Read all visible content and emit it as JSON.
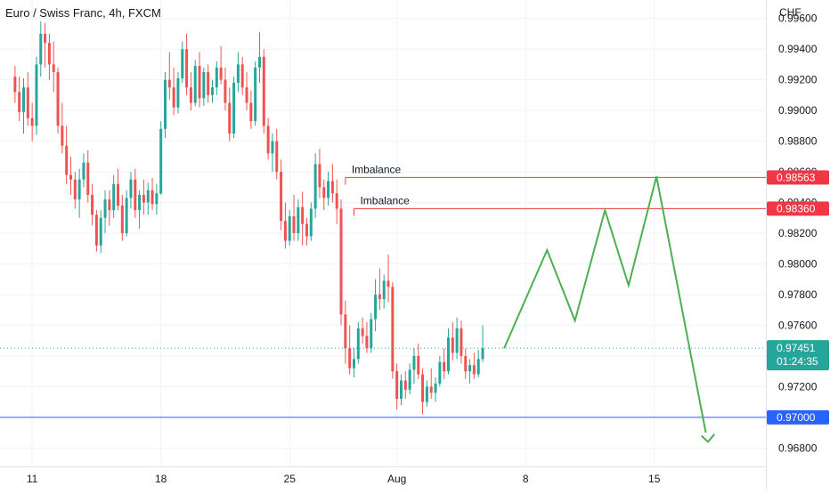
{
  "header": {
    "title": "Euro / Swiss Franc, 4h, FXCM",
    "currency": "CHF"
  },
  "colors": {
    "up": "#26a69a",
    "down": "#ef5350",
    "drawing": "#f23645",
    "support": "#2962ff",
    "projection": "#4caf50",
    "grid": "#f0f3fa",
    "text": "#131722"
  },
  "chart_data": {
    "type": "candlestick",
    "symbol": "EURCHF",
    "interval": "4h",
    "y_axis": {
      "ticks": [
        "0.99600",
        "0.99400",
        "0.99200",
        "0.99000",
        "0.98800",
        "0.98600",
        "0.98400",
        "0.98200",
        "0.98000",
        "0.97800",
        "0.97600",
        "0.97400",
        "0.97200",
        "0.97000",
        "0.96800"
      ],
      "ylim": [
        0.9668,
        0.9972
      ]
    },
    "x_axis": {
      "ticks": [
        {
          "label": "11",
          "bar": 4
        },
        {
          "label": "18",
          "bar": 34
        },
        {
          "label": "25",
          "bar": 64
        },
        {
          "label": "Aug",
          "bar": 89
        },
        {
          "label": "8",
          "bar": 119
        },
        {
          "label": "15",
          "bar": 149
        }
      ],
      "bar_range": [
        -3.5,
        175
      ]
    },
    "candles": [
      [
        0.9922,
        0.9929,
        0.9905,
        0.9912
      ],
      [
        0.9912,
        0.9922,
        0.9893,
        0.9899
      ],
      [
        0.9899,
        0.9921,
        0.9885,
        0.9915
      ],
      [
        0.9915,
        0.9925,
        0.989,
        0.9895
      ],
      [
        0.9895,
        0.9905,
        0.988,
        0.989
      ],
      [
        0.989,
        0.9935,
        0.9884,
        0.993
      ],
      [
        0.993,
        0.9958,
        0.9922,
        0.995
      ],
      [
        0.995,
        0.9957,
        0.9928,
        0.9944
      ],
      [
        0.9944,
        0.995,
        0.992,
        0.993
      ],
      [
        0.993,
        0.9945,
        0.9912,
        0.9925
      ],
      [
        0.9925,
        0.9928,
        0.9885,
        0.989
      ],
      [
        0.989,
        0.9905,
        0.9872,
        0.9877
      ],
      [
        0.9877,
        0.989,
        0.9852,
        0.9858
      ],
      [
        0.9858,
        0.987,
        0.9845,
        0.9855
      ],
      [
        0.9855,
        0.986,
        0.9836,
        0.9842
      ],
      [
        0.9842,
        0.9862,
        0.983,
        0.9855
      ],
      [
        0.9855,
        0.9872,
        0.985,
        0.9866
      ],
      [
        0.9866,
        0.9874,
        0.984,
        0.9845
      ],
      [
        0.9845,
        0.9852,
        0.9825,
        0.9832
      ],
      [
        0.9832,
        0.9835,
        0.9808,
        0.9812
      ],
      [
        0.9812,
        0.9835,
        0.9807,
        0.983
      ],
      [
        0.983,
        0.9848,
        0.982,
        0.9842
      ],
      [
        0.9842,
        0.9848,
        0.9825,
        0.9835
      ],
      [
        0.9835,
        0.9858,
        0.983,
        0.9852
      ],
      [
        0.9852,
        0.9862,
        0.9835,
        0.9838
      ],
      [
        0.9838,
        0.9845,
        0.9815,
        0.982
      ],
      [
        0.982,
        0.9848,
        0.9818,
        0.9843
      ],
      [
        0.9843,
        0.986,
        0.9836,
        0.9855
      ],
      [
        0.9855,
        0.9862,
        0.983,
        0.9835
      ],
      [
        0.9835,
        0.9848,
        0.9823,
        0.9845
      ],
      [
        0.9845,
        0.9855,
        0.9832,
        0.984
      ],
      [
        0.984,
        0.9853,
        0.9832,
        0.9848
      ],
      [
        0.9848,
        0.9856,
        0.9835,
        0.9839
      ],
      [
        0.9839,
        0.9852,
        0.9832,
        0.9846
      ],
      [
        0.9846,
        0.9893,
        0.9845,
        0.9888
      ],
      [
        0.9888,
        0.9925,
        0.9882,
        0.992
      ],
      [
        0.992,
        0.9938,
        0.9907,
        0.9915
      ],
      [
        0.9915,
        0.9928,
        0.9897,
        0.9902
      ],
      [
        0.9902,
        0.9925,
        0.9898,
        0.9921
      ],
      [
        0.9921,
        0.9945,
        0.9918,
        0.994
      ],
      [
        0.994,
        0.995,
        0.991,
        0.9915
      ],
      [
        0.9915,
        0.9925,
        0.99,
        0.9905
      ],
      [
        0.9905,
        0.9933,
        0.9903,
        0.9929
      ],
      [
        0.9929,
        0.9938,
        0.9902,
        0.9908
      ],
      [
        0.9908,
        0.9928,
        0.9903,
        0.9925
      ],
      [
        0.9925,
        0.993,
        0.9905,
        0.991
      ],
      [
        0.991,
        0.992,
        0.9905,
        0.9915
      ],
      [
        0.9915,
        0.9932,
        0.991,
        0.9928
      ],
      [
        0.9928,
        0.9942,
        0.9917,
        0.992
      ],
      [
        0.992,
        0.9928,
        0.99,
        0.9905
      ],
      [
        0.9905,
        0.9915,
        0.988,
        0.9885
      ],
      [
        0.9885,
        0.9922,
        0.9882,
        0.9918
      ],
      [
        0.9918,
        0.9938,
        0.9912,
        0.993
      ],
      [
        0.993,
        0.9935,
        0.991,
        0.9915
      ],
      [
        0.9915,
        0.9925,
        0.99,
        0.9905
      ],
      [
        0.9905,
        0.9913,
        0.9888,
        0.9893
      ],
      [
        0.9893,
        0.9932,
        0.989,
        0.9928
      ],
      [
        0.9928,
        0.9951,
        0.9918,
        0.9935
      ],
      [
        0.9935,
        0.994,
        0.9885,
        0.989
      ],
      [
        0.989,
        0.9895,
        0.9868,
        0.9872
      ],
      [
        0.9872,
        0.9885,
        0.986,
        0.988
      ],
      [
        0.988,
        0.9888,
        0.9855,
        0.986
      ],
      [
        0.986,
        0.9868,
        0.9822,
        0.9828
      ],
      [
        0.9828,
        0.984,
        0.981,
        0.9815
      ],
      [
        0.9815,
        0.9835,
        0.9812,
        0.9831
      ],
      [
        0.9831,
        0.9845,
        0.9815,
        0.982
      ],
      [
        0.982,
        0.9842,
        0.9815,
        0.9837
      ],
      [
        0.9837,
        0.9847,
        0.9812,
        0.9826
      ],
      [
        0.9826,
        0.983,
        0.9812,
        0.9818
      ],
      [
        0.9818,
        0.984,
        0.9815,
        0.9836
      ],
      [
        0.9836,
        0.9872,
        0.983,
        0.9865
      ],
      [
        0.9865,
        0.9875,
        0.9843,
        0.985
      ],
      [
        0.985,
        0.9855,
        0.9835,
        0.9843
      ],
      [
        0.9843,
        0.986,
        0.9838,
        0.9854
      ],
      [
        0.9854,
        0.9865,
        0.984,
        0.9846
      ],
      [
        0.9846,
        0.9855,
        0.9826,
        0.9836
      ],
      [
        0.9836,
        0.9842,
        0.976,
        0.9767
      ],
      [
        0.9767,
        0.9776,
        0.9735,
        0.9745
      ],
      [
        0.9745,
        0.976,
        0.9728,
        0.9732
      ],
      [
        0.9732,
        0.9745,
        0.9726,
        0.9738
      ],
      [
        0.9738,
        0.9762,
        0.9735,
        0.9758
      ],
      [
        0.9758,
        0.9765,
        0.9748,
        0.9753
      ],
      [
        0.9753,
        0.9762,
        0.9742,
        0.9745
      ],
      [
        0.9745,
        0.9768,
        0.9742,
        0.9764
      ],
      [
        0.9764,
        0.979,
        0.9756,
        0.978
      ],
      [
        0.978,
        0.9797,
        0.977,
        0.9777
      ],
      [
        0.9777,
        0.9793,
        0.9771,
        0.9789
      ],
      [
        0.9789,
        0.9806,
        0.9775,
        0.9785
      ],
      [
        0.9785,
        0.9788,
        0.9725,
        0.973
      ],
      [
        0.973,
        0.9735,
        0.9705,
        0.9712
      ],
      [
        0.9712,
        0.9728,
        0.9708,
        0.9724
      ],
      [
        0.9724,
        0.973,
        0.9712,
        0.9718
      ],
      [
        0.9718,
        0.9735,
        0.9715,
        0.9731
      ],
      [
        0.9731,
        0.9745,
        0.9722,
        0.974
      ],
      [
        0.974,
        0.9748,
        0.9725,
        0.9728
      ],
      [
        0.9728,
        0.9732,
        0.9702,
        0.971
      ],
      [
        0.971,
        0.9724,
        0.9707,
        0.972
      ],
      [
        0.972,
        0.9732,
        0.9712,
        0.9716
      ],
      [
        0.9716,
        0.9726,
        0.971,
        0.9722
      ],
      [
        0.9722,
        0.974,
        0.972,
        0.9736
      ],
      [
        0.9736,
        0.9745,
        0.9725,
        0.973
      ],
      [
        0.973,
        0.9758,
        0.9728,
        0.9752
      ],
      [
        0.9752,
        0.9762,
        0.9737,
        0.9742
      ],
      [
        0.9742,
        0.9765,
        0.9738,
        0.9758
      ],
      [
        0.9758,
        0.9763,
        0.9735,
        0.974
      ],
      [
        0.974,
        0.9745,
        0.9725,
        0.973
      ],
      [
        0.973,
        0.9738,
        0.9722,
        0.9734
      ],
      [
        0.9734,
        0.9742,
        0.9725,
        0.9728
      ],
      [
        0.9728,
        0.9744,
        0.9726,
        0.9738
      ],
      [
        0.9738,
        0.976,
        0.9736,
        0.9745
      ]
    ],
    "last_price": "0.97451",
    "countdown": "01:24:35",
    "levels": [
      {
        "label": "Imbalance",
        "price": "0.98563",
        "from_bar": 77
      },
      {
        "label": "Imbalance",
        "price": "0.98360",
        "from_bar": 79
      },
      {
        "label": "",
        "price": "0.97000",
        "from_bar": -4
      }
    ],
    "projection_path": [
      [
        114,
        0.9745
      ],
      [
        124,
        0.9809
      ],
      [
        130.5,
        0.9763
      ],
      [
        137.5,
        0.9835
      ],
      [
        143,
        0.9786
      ],
      [
        149.5,
        0.9857
      ],
      [
        161,
        0.969
      ]
    ],
    "projection_arrow": [
      [
        160,
        0.9688
      ],
      [
        161.5,
        0.9684
      ],
      [
        163,
        0.9689
      ]
    ],
    "grid": true
  }
}
